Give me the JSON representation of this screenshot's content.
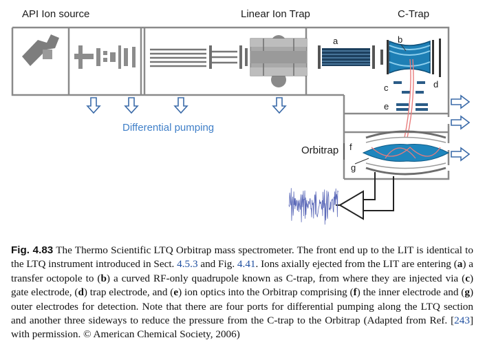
{
  "diagram": {
    "labels": {
      "api_ion_source": "API Ion source",
      "linear_ion_trap": "Linear Ion Trap",
      "c_trap": "C-Trap",
      "differential_pumping": "Differential pumping",
      "orbitrap": "Orbitrap"
    },
    "letters": {
      "a": "a",
      "b": "b",
      "c": "c",
      "d": "d",
      "e": "e",
      "f": "f",
      "g": "g"
    },
    "colors": {
      "pump_arrow": "#3a6aa8",
      "diff_pumping_text": "#3f7fc8",
      "c_trap_fill": "#1e7fb5",
      "orbitrap_electrode": "#1f86bd",
      "ion_path": "#e87c7c",
      "signal_wave": "#5a68b8"
    }
  },
  "caption": {
    "fig_label": "Fig. 4.83",
    "seg1": " The Thermo Scientific LTQ Orbitrap mass spectrometer. The front end up to the LIT is identical to the LTQ instrument introduced in Sect. ",
    "ref1": "4.5.3",
    "seg2": " and Fig. ",
    "ref2": "4.41",
    "seg3": ". Ions axially ejected from the LIT are entering (",
    "k_a": "a",
    "seg4": ") a transfer octopole to (",
    "k_b": "b",
    "seg5": ") a curved RF-only quadrupole known as C-trap, from where they are injected via (",
    "k_c": "c",
    "seg6": ") gate electrode, (",
    "k_d": "d",
    "seg7": ") trap electrode, and (",
    "k_e": "e",
    "seg8": ") ion optics into the Orbitrap comprising (",
    "k_f": "f",
    "seg9": ") the inner electrode and (",
    "k_g": "g",
    "seg10": ") outer electrodes for detection. Note that there are four ports for differential pumping along the LTQ section and another three sideways to reduce the pressure from the C-trap to the Orbitrap (Adapted from Ref. [",
    "ref3": "243",
    "seg11": "] with permission. © American Chemical Society, 2006)"
  }
}
